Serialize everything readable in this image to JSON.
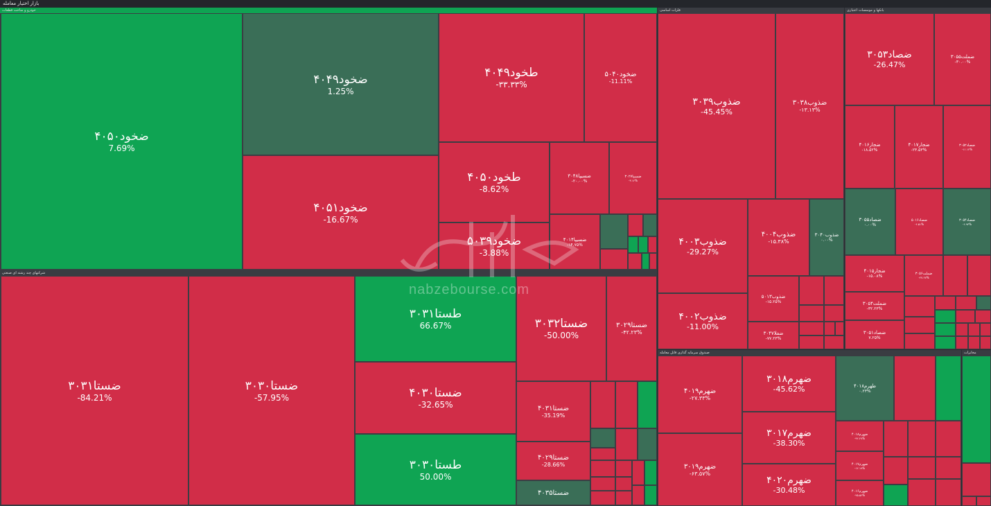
{
  "header": {
    "title": "بازار اختیار معامله"
  },
  "colors": {
    "positive": "#0fa453",
    "negative": "#d12d48",
    "neutral": "#3a6e57",
    "background": "#2a2c31"
  },
  "watermark": {
    "site": "nabzebourse.com"
  },
  "sections": {
    "auto": "خودرو و ساخت قطعات",
    "multi": "شرکتهای چند رشته ای صنعتی",
    "metals": "فلزات اساسی",
    "banks": "بانکها و موسسات اعتباری",
    "fund": "صندوق سرمایه گذاری قابل معامله",
    "comm": "مخابرات"
  },
  "tiles": {
    "zkhod4050": {
      "name": "ضخود۴۰۵۰",
      "pct": "7.69%"
    },
    "zkhod4049": {
      "name": "ضخود۴۰۴۹",
      "pct": "1.25%"
    },
    "zkhod4051": {
      "name": "ضخود۴۰۵۱",
      "pct": "-16.67%"
    },
    "tkhod4049": {
      "name": "طخود۴۰۴۹",
      "pct": "-۳۳.۳۳%"
    },
    "zkhod5040": {
      "name": "ضخود۵۰۴۰",
      "pct": "-11.11%"
    },
    "tkhod4050": {
      "name": "طخود۴۰۵۰",
      "pct": "-8.62%"
    },
    "zsipa3048": {
      "name": "ضسیپا۳۰۴۸",
      "pct": "-۲۰.۰۰%"
    },
    "zsipa3027": {
      "name": "ضسیپا۳۰۲۷",
      "pct": "-۳.۱۲%"
    },
    "zkhod5039": {
      "name": "ضخود۵۰۳۹",
      "pct": "-3.88%"
    },
    "zsipa4014": {
      "name": "ضسیپا۴۰۱۴",
      "pct": "-۱۴.۷۵%"
    },
    "zsta3031": {
      "name": "ضستا۳۰۳۱",
      "pct": "-84.21%"
    },
    "zsta3030": {
      "name": "ضستا۳۰۳۰",
      "pct": "-57.95%"
    },
    "tsta3031": {
      "name": "طستا۳۰۳۱",
      "pct": "66.67%"
    },
    "zsta3032": {
      "name": "ضستا۳۰۳۲",
      "pct": "-50.00%"
    },
    "zsta3029": {
      "name": "ضستا۳۰۲۹",
      "pct": "-۴۲.۲۳%"
    },
    "zsta4030": {
      "name": "ضستا۴۰۳۰",
      "pct": "-32.65%"
    },
    "zsta4031": {
      "name": "ضستا۴۰۳۱",
      "pct": "-35.19%"
    },
    "tsta3030": {
      "name": "طستا۳۰۳۰",
      "pct": "50.00%"
    },
    "zsta4029": {
      "name": "ضستا۴۰۲۹",
      "pct": "-28.66%"
    },
    "zsta4035": {
      "name": "ضستا۴۰۳۵",
      "pct": ""
    },
    "zzob3039": {
      "name": "ضذوب۳۰۳۹",
      "pct": "-45.45%"
    },
    "zzob3038": {
      "name": "ضذوب۳۰۳۸",
      "pct": "-۱۳.۱۳%"
    },
    "zzob4003": {
      "name": "ضذوب۴۰۰۳",
      "pct": "-29.27%"
    },
    "zzob4004": {
      "name": "ضذوب۴۰۰۴",
      "pct": "-۱۵.۳۸%"
    },
    "zzob3040": {
      "name": "ضذوب۳۰۴۰",
      "pct": "۰.۰۰%"
    },
    "zzob4002": {
      "name": "ضذوب۴۰۰۲",
      "pct": "-11.00%"
    },
    "zzob5013": {
      "name": "ضذوب۵۰۱۳",
      "pct": "-۱۵.۲۵%"
    },
    "zfola3047": {
      "name": "ضفلا۳۰۴۷",
      "pct": "-۷۷.۲۳%"
    },
    "zsad3053": {
      "name": "ضصاد۳۰۵۳",
      "pct": "-26.47%"
    },
    "zmelt3055": {
      "name": "ضملت۳۰۵۵",
      "pct": "-۳۰.۰۰%"
    },
    "zjar4016": {
      "name": "ضجار۴۰۱۶",
      "pct": "-۱۸.۵۲%"
    },
    "zjar4017": {
      "name": "ضجار۴۰۱۷",
      "pct": "-۲۳.۵۳%"
    },
    "zsad3052": {
      "name": "ضصاد۳۰۵۲",
      "pct": "-۱۱.۱۲%"
    },
    "zsad3055": {
      "name": "ضصاد۳۰۵۵",
      "pct": "۰.۰۰%"
    },
    "zsad5016": {
      "name": "ضصاد۵۰۱۶",
      "pct": "-۶.۵۱%"
    },
    "zsad3054": {
      "name": "ضصاد۳۰۵۴",
      "pct": "-۶.۹۳%"
    },
    "zjar4015": {
      "name": "ضجار۴۰۱۵",
      "pct": "-۱۵.۰۸%"
    },
    "zmelt3056": {
      "name": "ضملت۳۰۵۶",
      "pct": "-۲۷.۲۷%"
    },
    "zmelt3054": {
      "name": "ضملت۳۰۵۴",
      "pct": "-۳۲.۲۳%"
    },
    "zsad3051": {
      "name": "ضصاد۳۰۵۱",
      "pct": "۷.۲۵%"
    },
    "zohrom4019": {
      "name": "ضهرم۴۰۱۹",
      "pct": "-۲۷.۳۳%"
    },
    "zohrom3018": {
      "name": "ضهرم۳۰۱۸",
      "pct": "-45.62%"
    },
    "tohrom4018": {
      "name": "طهرم۴۰۱۸",
      "pct": "۰.۲۳%"
    },
    "zohrom3017": {
      "name": "ضهرم۳۰۱۷",
      "pct": "-38.30%"
    },
    "zohrom3019": {
      "name": "ضهرم۳۰۱۹",
      "pct": "-۶۳.۵۷%"
    },
    "zohrom4020": {
      "name": "ضهرم۴۰۲۰",
      "pct": "-30.48%"
    },
    "zohrom4018": {
      "name": "ضهرم۴۰۱۸",
      "pct": "-۴۲.۲۷%"
    },
    "zohrom4017": {
      "name": "ضهرم۴۰۱۷",
      "pct": "-۱۲.۱۹%"
    },
    "zohrom4016": {
      "name": "ضهرم۴۰۱۶",
      "pct": "-۲۵.۵۶%"
    }
  }
}
